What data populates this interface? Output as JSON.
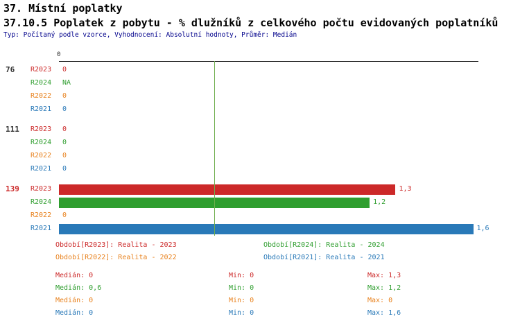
{
  "header": {
    "title_line1": "37. Místní poplatky",
    "title_line2": "37.10.5 Poplatek z pobytu - % dlužníků z celkového počtu evidovaných poplatníků",
    "subtitle": "Typ: Počítaný podle vzorce, Vyhodnocení: Absolutní hodnoty, Průměr: Medián"
  },
  "chart_data": {
    "type": "bar",
    "orientation": "horizontal",
    "x_axis": {
      "tick_labels": [
        "0"
      ],
      "range": [
        0,
        1.62
      ]
    },
    "median_line": {
      "value": 0.6,
      "color": "#6fae4e"
    },
    "series_colors": {
      "R2023": "#cc2929",
      "R2024": "#2f9e2f",
      "R2022": "#e8821e",
      "R2021": "#2979b8"
    },
    "groups": [
      {
        "label": "76",
        "label_color": "#333333",
        "rows": [
          {
            "series": "R2023",
            "value": 0,
            "display": "0"
          },
          {
            "series": "R2024",
            "value": null,
            "display": "NA"
          },
          {
            "series": "R2022",
            "value": 0,
            "display": "0"
          },
          {
            "series": "R2021",
            "value": 0,
            "display": "0"
          }
        ]
      },
      {
        "label": "111",
        "label_color": "#333333",
        "rows": [
          {
            "series": "R2023",
            "value": 0,
            "display": "0"
          },
          {
            "series": "R2024",
            "value": 0,
            "display": "0"
          },
          {
            "series": "R2022",
            "value": 0,
            "display": "0"
          },
          {
            "series": "R2021",
            "value": 0,
            "display": "0"
          }
        ]
      },
      {
        "label": "139",
        "label_color": "#cc2929",
        "rows": [
          {
            "series": "R2023",
            "value": 1.3,
            "display": "1,3"
          },
          {
            "series": "R2024",
            "value": 1.2,
            "display": "1,2"
          },
          {
            "series": "R2022",
            "value": 0,
            "display": "0"
          },
          {
            "series": "R2021",
            "value": 1.6,
            "display": "1,6"
          }
        ]
      }
    ],
    "legend": [
      {
        "series": "R2023",
        "label": "Období[R2023]: Realita - 2023"
      },
      {
        "series": "R2024",
        "label": "Období[R2024]: Realita - 2024"
      },
      {
        "series": "R2022",
        "label": "Období[R2022]: Realita - 2022"
      },
      {
        "series": "R2021",
        "label": "Období[R2021]: Realita - 2021"
      }
    ],
    "stats": [
      {
        "series": "R2023",
        "median": "Medián: 0",
        "min": "Min: 0",
        "max": "Max: 1,3"
      },
      {
        "series": "R2024",
        "median": "Medián: 0,6",
        "min": "Min: 0",
        "max": "Max: 1,2"
      },
      {
        "series": "R2022",
        "median": "Medián: 0",
        "min": "Min: 0",
        "max": "Max: 0"
      },
      {
        "series": "R2021",
        "median": "Medián: 0",
        "min": "Min: 0",
        "max": "Max: 1,6"
      }
    ]
  }
}
